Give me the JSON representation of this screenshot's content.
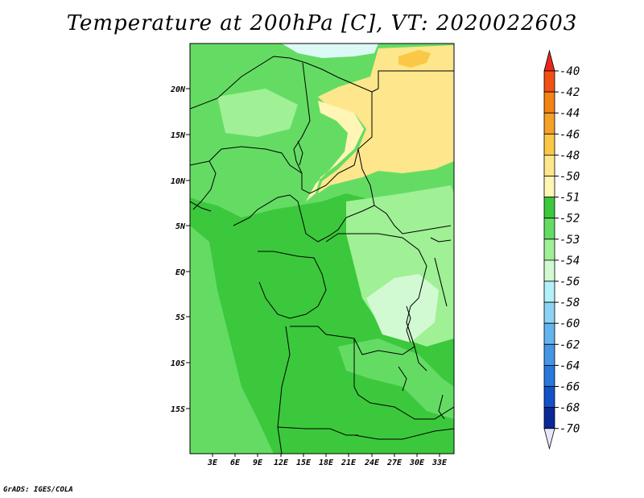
{
  "title": "Temperature at 200hPa [C], VT: 2020022603",
  "credit": "GrADS: IGES/COLA",
  "lat_labels": [
    "20N",
    "15N",
    "10N",
    "5N",
    "EQ",
    "5S",
    "10S",
    "15S"
  ],
  "lon_labels": [
    "3E",
    "6E",
    "9E",
    "12E",
    "15E",
    "18E",
    "21E",
    "24E",
    "27E",
    "30E",
    "33E"
  ],
  "colorbar": {
    "levels": [
      "-40",
      "-42",
      "-44",
      "-46",
      "-48",
      "-50",
      "-51",
      "-52",
      "-53",
      "-54",
      "-56",
      "-58",
      "-60",
      "-62",
      "-64",
      "-66",
      "-68",
      "-70"
    ],
    "colors": [
      "#e8281e",
      "#f05014",
      "#f58214",
      "#f5a028",
      "#fac846",
      "#fde68c",
      "#fff5b4",
      "#3cc83c",
      "#64dc64",
      "#a0f096",
      "#d2fad2",
      "#b4f0fa",
      "#8cd2f5",
      "#64b4f0",
      "#4696e6",
      "#2878dc",
      "#1450c8",
      "#0a2896",
      "#000050"
    ],
    "top_arrow_color": "#e8281e",
    "bottom_arrow_color": "#e6e6fa"
  },
  "map_colors": {
    "base": "#3cc83c",
    "light_green": "#64dc64",
    "pale_green": "#a0f096",
    "very_pale": "#d2fad2",
    "cyan": "#dcfaf5",
    "yellow": "#fde68c",
    "pale_yellow": "#fff5b4",
    "orange": "#fac846"
  }
}
